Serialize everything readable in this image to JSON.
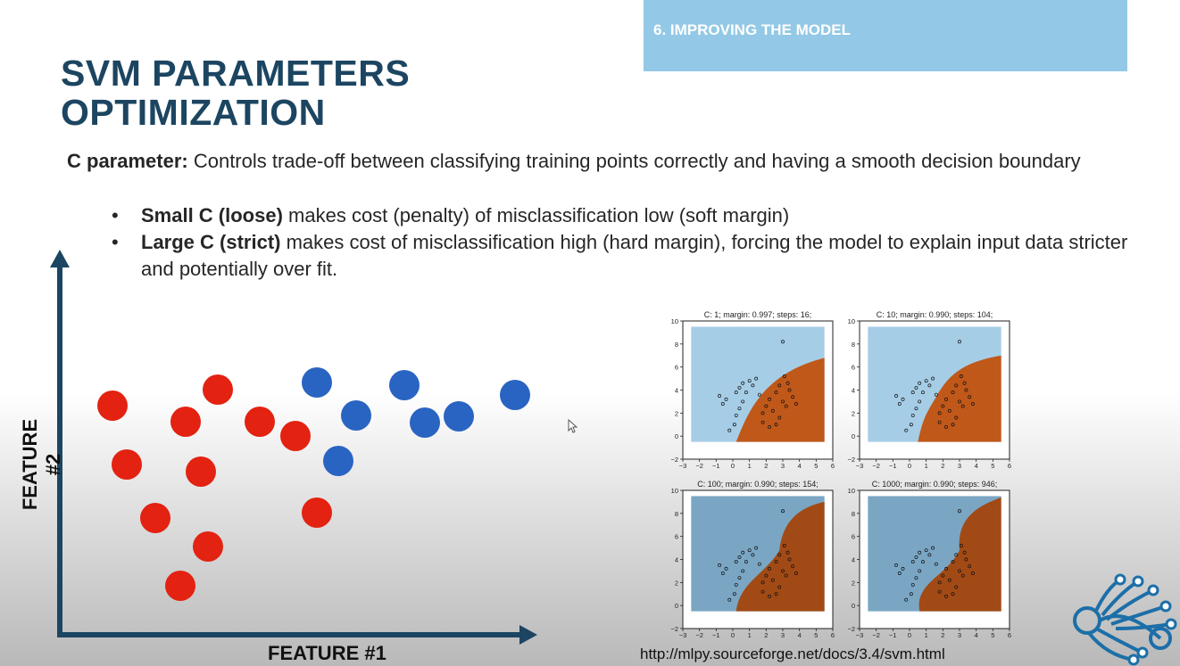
{
  "section": {
    "label": "6. IMPROVING THE MODEL"
  },
  "slide": {
    "title_line1": "SVM PARAMETERS",
    "title_line2": "OPTIMIZATION",
    "c_param_label": "C parameter:",
    "c_param_text": " Controls trade-off between classifying training points correctly and having a smooth decision boundary",
    "bullets": [
      {
        "bold": "Small C (loose)",
        "text": " makes cost (penalty) of misclassification low (soft margin)"
      },
      {
        "bold": "Large C (strict)",
        "text": " makes cost of misclassification high (hard margin), forcing the model to explain input data stricter and potentially over fit."
      }
    ]
  },
  "scatter": {
    "xlabel": "FEATURE #1",
    "ylabel": "FEATURE #2",
    "red_color": "#e32211",
    "blue_color": "#2a64c2"
  },
  "svm_plots": [
    {
      "title": "C: 1; margin: 0.997; steps: 16;"
    },
    {
      "title": "C: 10; margin: 0.990; steps: 104;"
    },
    {
      "title": "C: 100; margin: 0.990; steps: 154;"
    },
    {
      "title": "C: 1000; margin: 0.990; steps: 946;"
    }
  ],
  "svm_axes": {
    "x_ticks": [
      "−3",
      "−2",
      "−1",
      "0",
      "1",
      "2",
      "3",
      "4",
      "5",
      "6"
    ],
    "y_ticks": [
      "−2",
      "0",
      "2",
      "4",
      "6",
      "8",
      "10"
    ]
  },
  "source_url": "http://mlpy.sourceforge.net/docs/3.4/svm.html",
  "colors": {
    "title": "#1c4561",
    "banner": "#93c9e6",
    "region_blue": "#a6cde6",
    "region_orange": "#c0581a"
  }
}
